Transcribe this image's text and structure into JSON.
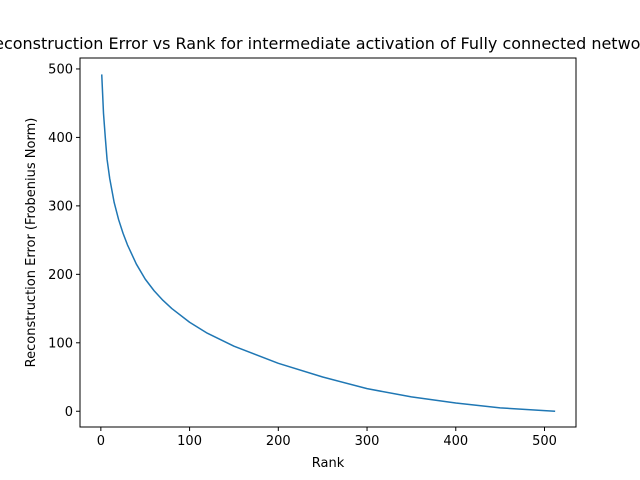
{
  "chart_data": {
    "type": "line",
    "title": "Reconstruction Error vs Rank for intermediate activation of Fully connected network",
    "xlabel": "Rank",
    "ylabel": "Reconstruction Error (Frobenius Norm)",
    "xlim": [
      -23.5,
      535.5
    ],
    "ylim": [
      -23,
      516
    ],
    "xticks": [
      0,
      100,
      200,
      300,
      400,
      500
    ],
    "yticks": [
      0,
      100,
      200,
      300,
      400,
      500
    ],
    "grid": false,
    "legend": "none",
    "series": [
      {
        "color": "#1f77b4",
        "x": [
          1,
          3,
          5,
          7,
          10,
          15,
          20,
          25,
          30,
          40,
          50,
          60,
          70,
          80,
          100,
          120,
          150,
          200,
          250,
          300,
          350,
          400,
          450,
          500,
          512
        ],
        "y": [
          492,
          435,
          400,
          368,
          340,
          305,
          280,
          260,
          243,
          215,
          193,
          176,
          162,
          150,
          130,
          114,
          95,
          70,
          50,
          33,
          21,
          12,
          5,
          1,
          0
        ]
      }
    ]
  }
}
